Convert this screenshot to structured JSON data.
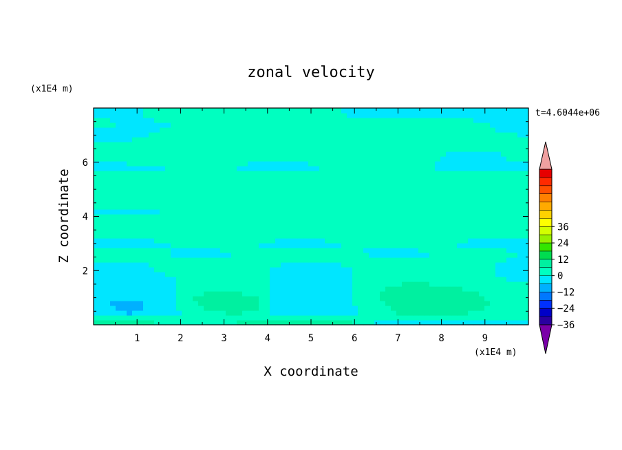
{
  "chart_data": {
    "type": "heatmap",
    "title": "zonal velocity",
    "xlabel": "X coordinate",
    "ylabel": "Z coordinate",
    "x_unit": "(x1E4 m)",
    "y_unit": "(x1E4 m)",
    "time_label": "t=4.6044e+06",
    "xlim": [
      0,
      10
    ],
    "ylim": [
      0,
      8
    ],
    "x_ticks": [
      "1",
      "2",
      "3",
      "4",
      "5",
      "6",
      "7",
      "8",
      "9"
    ],
    "y_ticks": [
      "2",
      "4",
      "6"
    ],
    "colorbar": {
      "tick_labels": [
        "36",
        "24",
        "12",
        "0",
        "−12",
        "−24",
        "−36"
      ],
      "range": [
        -42,
        42
      ],
      "step": 6,
      "colors": [
        "#7a00a8",
        "#2a00a0",
        "#0000c8",
        "#0030ff",
        "#0078ff",
        "#00b0ff",
        "#00e6ff",
        "#00ffc0",
        "#00f0a0",
        "#00dc50",
        "#32e600",
        "#96f000",
        "#d2ff00",
        "#ffff00",
        "#ffd200",
        "#ffaa00",
        "#ff8000",
        "#ff5000",
        "#ff2a00",
        "#e60000",
        "#f0a0a0"
      ]
    },
    "field": {
      "description_rows_z": [
        0.1,
        0.4,
        0.7,
        1.0,
        1.4,
        1.8,
        2.2,
        2.6,
        3.0,
        3.4,
        3.8,
        4.2,
        4.6,
        5.0,
        5.4,
        5.8,
        6.2,
        6.6,
        7.0,
        7.4,
        7.8
      ],
      "x": [
        0.25,
        0.75,
        1.25,
        1.75,
        2.25,
        2.75,
        3.25,
        3.75,
        4.25,
        4.75,
        5.25,
        5.75,
        6.25,
        6.75,
        7.25,
        7.75,
        8.25,
        8.75,
        9.25,
        9.75
      ],
      "values": [
        [
          9,
          9,
          8,
          3,
          3,
          4,
          6,
          7,
          6,
          9,
          9,
          8,
          3,
          -3,
          -4,
          -5,
          -3,
          -2,
          -3,
          -1
        ],
        [
          -4,
          -6,
          -5,
          -2,
          2,
          4,
          6,
          5,
          -2,
          -5,
          -4,
          -2,
          1,
          4,
          7,
          8,
          7,
          5,
          3,
          2
        ],
        [
          -6,
          -7,
          -6,
          -3,
          5,
          9,
          10,
          7,
          -3,
          -6,
          -5,
          -2,
          2,
          6,
          10,
          12,
          11,
          9,
          5,
          2
        ],
        [
          -5,
          -6,
          -5,
          -2,
          6,
          8,
          8,
          6,
          -3,
          -5,
          -4,
          -2,
          3,
          8,
          11,
          11,
          10,
          8,
          4,
          1
        ],
        [
          -3,
          -4,
          -4,
          -2,
          3,
          5,
          5,
          3,
          -2,
          -3,
          -3,
          -1,
          2,
          6,
          8,
          7,
          6,
          5,
          2,
          1
        ],
        [
          -2,
          -2,
          -1,
          0,
          1,
          2,
          2,
          1,
          -1,
          -2,
          -2,
          -1,
          1,
          2,
          3,
          3,
          2,
          2,
          0,
          -1
        ],
        [
          -1,
          -1,
          0,
          1,
          1,
          2,
          2,
          1,
          0,
          -1,
          -1,
          0,
          1,
          1,
          2,
          2,
          1,
          1,
          0,
          -1
        ],
        [
          1,
          1,
          1,
          0,
          -1,
          -1,
          0,
          1,
          1,
          1,
          1,
          1,
          0,
          -1,
          -1,
          0,
          1,
          1,
          1,
          0
        ],
        [
          -1,
          -1,
          -1,
          0,
          1,
          1,
          1,
          0,
          -1,
          -1,
          -1,
          0,
          0,
          1,
          1,
          1,
          0,
          -1,
          -1,
          -1
        ],
        [
          2,
          2,
          2,
          2,
          2,
          2,
          2,
          2,
          2,
          2,
          2,
          2,
          2,
          2,
          2,
          2,
          2,
          2,
          2,
          2
        ],
        [
          2,
          2,
          2,
          2,
          2,
          2,
          2,
          2,
          2,
          2,
          2,
          2,
          2,
          2,
          2,
          2,
          2,
          2,
          2,
          2
        ],
        [
          -1,
          -1,
          -1,
          1,
          2,
          2,
          2,
          2,
          2,
          2,
          2,
          2,
          2,
          2,
          2,
          2,
          2,
          2,
          1,
          0
        ],
        [
          2,
          2,
          2,
          2,
          2,
          2,
          2,
          2,
          2,
          2,
          2,
          2,
          2,
          2,
          2,
          2,
          2,
          2,
          2,
          2
        ],
        [
          1,
          1,
          1,
          1,
          2,
          2,
          2,
          2,
          2,
          2,
          2,
          2,
          2,
          2,
          2,
          1,
          1,
          1,
          1,
          1
        ],
        [
          2,
          2,
          2,
          2,
          2,
          2,
          2,
          2,
          2,
          2,
          2,
          2,
          2,
          2,
          2,
          2,
          2,
          2,
          2,
          2
        ],
        [
          -1,
          -2,
          -1,
          0,
          1,
          1,
          0,
          -1,
          -1,
          -1,
          0,
          0,
          1,
          1,
          1,
          0,
          -1,
          -2,
          -1,
          -1
        ],
        [
          1,
          3,
          4,
          3,
          2,
          1,
          1,
          1,
          1,
          1,
          1,
          1,
          1,
          1,
          1,
          1,
          -1,
          -2,
          -1,
          1
        ],
        [
          1,
          1,
          1,
          1,
          1,
          1,
          1,
          1,
          1,
          1,
          1,
          1,
          1,
          1,
          1,
          1,
          1,
          1,
          1,
          1
        ],
        [
          -2,
          -1,
          0,
          1,
          1,
          1,
          1,
          1,
          1,
          1,
          1,
          1,
          2,
          2,
          3,
          2,
          1,
          1,
          1,
          0
        ],
        [
          1,
          -1,
          -1,
          0,
          1,
          2,
          3,
          3,
          3,
          2,
          2,
          1,
          1,
          2,
          2,
          3,
          3,
          2,
          -1,
          -2
        ],
        [
          -1,
          -2,
          1,
          1,
          1,
          1,
          2,
          3,
          5,
          4,
          2,
          0,
          -1,
          -1,
          -1,
          -2,
          -2,
          -3,
          -2,
          -1
        ]
      ]
    }
  }
}
